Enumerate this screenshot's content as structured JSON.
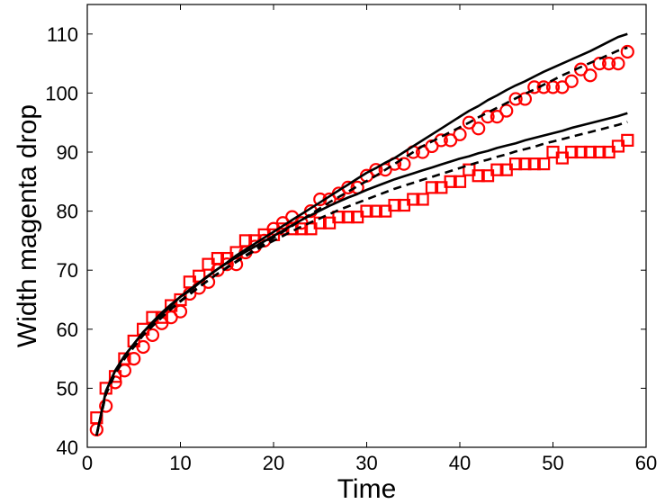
{
  "chart_data": {
    "type": "line",
    "xlabel": "Time",
    "ylabel": "Width magenta drop",
    "xlim": [
      0,
      60
    ],
    "ylim": [
      40,
      115
    ],
    "xticks": [
      0,
      10,
      20,
      30,
      40,
      50,
      60
    ],
    "yticks": [
      40,
      50,
      60,
      70,
      80,
      90,
      100,
      110
    ],
    "grid": false,
    "legend": "none",
    "series": [
      {
        "style": "circle-markers",
        "color": "#ff0000",
        "x": [
          1,
          2,
          3,
          4,
          5,
          6,
          7,
          8,
          9,
          10,
          11,
          12,
          13,
          14,
          15,
          16,
          17,
          18,
          19,
          20,
          21,
          22,
          23,
          24,
          25,
          26,
          27,
          28,
          29,
          30,
          31,
          32,
          33,
          34,
          35,
          36,
          37,
          38,
          39,
          40,
          41,
          42,
          43,
          44,
          45,
          46,
          47,
          48,
          49,
          50,
          51,
          52,
          53,
          54,
          55,
          56,
          57,
          58
        ],
        "values": [
          43,
          47,
          51,
          53,
          55,
          57,
          59,
          61,
          62,
          63,
          66,
          67,
          68,
          70,
          71,
          71,
          73,
          74,
          75,
          77,
          78,
          79,
          78,
          80,
          82,
          82,
          83,
          84,
          84,
          86,
          87,
          87,
          88,
          88,
          90,
          90,
          91,
          92,
          92,
          93,
          95,
          94,
          96,
          96,
          97,
          99,
          99,
          101,
          101,
          101,
          101,
          102,
          104,
          103,
          105,
          105,
          105,
          107
        ]
      },
      {
        "style": "square-markers",
        "color": "#ff0000",
        "x": [
          1,
          2,
          3,
          4,
          5,
          6,
          7,
          8,
          9,
          10,
          11,
          12,
          13,
          14,
          15,
          16,
          17,
          18,
          19,
          20,
          21,
          22,
          23,
          24,
          25,
          26,
          27,
          28,
          29,
          30,
          31,
          32,
          33,
          34,
          35,
          36,
          37,
          38,
          39,
          40,
          41,
          42,
          43,
          44,
          45,
          46,
          47,
          48,
          49,
          50,
          51,
          52,
          53,
          54,
          55,
          56,
          57,
          58
        ],
        "values": [
          45,
          50,
          52,
          55,
          58,
          60,
          62,
          62,
          64,
          65,
          68,
          69,
          71,
          72,
          72,
          73,
          75,
          75,
          76,
          76,
          77,
          77,
          77,
          77,
          78,
          78,
          79,
          79,
          79,
          80,
          80,
          80,
          81,
          81,
          82,
          82,
          84,
          84,
          85,
          85,
          87,
          86,
          86,
          87,
          87,
          88,
          88,
          88,
          88,
          90,
          89,
          90,
          90,
          90,
          90,
          90,
          91,
          92
        ]
      },
      {
        "style": "solid-line",
        "color": "#000000",
        "x": [
          1,
          2,
          3,
          4,
          5,
          6,
          7,
          8,
          9,
          10,
          11,
          12,
          13,
          14,
          15,
          16,
          17,
          18,
          19,
          20,
          21,
          22,
          23,
          24,
          25,
          26,
          27,
          28,
          29,
          30,
          31,
          32,
          33,
          34,
          35,
          36,
          37,
          38,
          39,
          40,
          41,
          42,
          43,
          44,
          45,
          46,
          47,
          48,
          49,
          50,
          51,
          52,
          53,
          54,
          55,
          56,
          57,
          58
        ],
        "values": [
          42,
          49.5,
          53,
          55.5,
          57.5,
          59.5,
          61,
          62.5,
          64,
          65.5,
          66.5,
          67.8,
          69,
          70.2,
          71.3,
          72.5,
          73.5,
          74.5,
          75.5,
          76.5,
          77.5,
          78.5,
          79.5,
          80.5,
          81.5,
          82.5,
          83.5,
          84.5,
          85.5,
          86.5,
          87.3,
          88.2,
          89,
          90,
          91,
          92,
          93,
          94,
          95,
          96,
          97,
          97.8,
          98.8,
          99.6,
          100.5,
          101.3,
          102,
          102.8,
          103.6,
          104.3,
          105,
          105.7,
          106.4,
          107.1,
          107.9,
          108.7,
          109.5,
          110
        ]
      },
      {
        "style": "dashed-line",
        "color": "#000000",
        "x": [
          1,
          2,
          3,
          4,
          5,
          6,
          7,
          8,
          9,
          10,
          11,
          12,
          13,
          14,
          15,
          16,
          17,
          18,
          19,
          20,
          21,
          22,
          23,
          24,
          25,
          26,
          27,
          28,
          29,
          30,
          31,
          32,
          33,
          34,
          35,
          36,
          37,
          38,
          39,
          40,
          41,
          42,
          43,
          44,
          45,
          46,
          47,
          48,
          49,
          50,
          51,
          52,
          53,
          54,
          55,
          56,
          57,
          58
        ],
        "values": [
          42,
          49,
          52.5,
          55,
          57,
          59,
          60.5,
          62,
          63.5,
          64.8,
          66,
          67.2,
          68.3,
          69.4,
          70.5,
          71.5,
          72.5,
          73.5,
          74.5,
          75.5,
          76.5,
          77.5,
          78.5,
          79.5,
          80.5,
          81.5,
          82.4,
          83.3,
          84.2,
          85.1,
          86,
          87,
          88,
          89,
          90,
          91,
          91.8,
          92.6,
          93.4,
          94.2,
          95,
          95.9,
          96.7,
          97.5,
          98.3,
          99.1,
          99.9,
          100.6,
          101.4,
          102.2,
          103,
          103.7,
          104.4,
          105.1,
          105.8,
          106.5,
          107.2,
          107.7
        ]
      },
      {
        "style": "solid-line",
        "color": "#000000",
        "x": [
          1,
          2,
          3,
          4,
          5,
          6,
          7,
          8,
          9,
          10,
          11,
          12,
          13,
          14,
          15,
          16,
          17,
          18,
          19,
          20,
          21,
          22,
          23,
          24,
          25,
          26,
          27,
          28,
          29,
          30,
          31,
          32,
          33,
          34,
          35,
          36,
          37,
          38,
          39,
          40,
          41,
          42,
          43,
          44,
          45,
          46,
          47,
          48,
          49,
          50,
          51,
          52,
          53,
          54,
          55,
          56,
          57,
          58
        ],
        "values": [
          42,
          49.5,
          53,
          55.5,
          57.5,
          59.5,
          61.2,
          62.8,
          64.2,
          65.5,
          66.7,
          67.9,
          69.1,
          70.2,
          71.2,
          72.2,
          73.1,
          74,
          74.9,
          75.8,
          76.7,
          77.6,
          78.5,
          79.3,
          80.1,
          80.9,
          81.6,
          82.3,
          82.9,
          83.6,
          84.2,
          84.8,
          85.4,
          85.9,
          86.4,
          86.9,
          87.4,
          87.9,
          88.4,
          88.9,
          89.3,
          89.8,
          90.2,
          90.7,
          91.1,
          91.5,
          92,
          92.4,
          92.8,
          93.2,
          93.6,
          94.1,
          94.5,
          94.9,
          95.3,
          95.7,
          96.1,
          96.6
        ]
      },
      {
        "style": "dashed-line",
        "color": "#000000",
        "x": [
          1,
          2,
          3,
          4,
          5,
          6,
          7,
          8,
          9,
          10,
          11,
          12,
          13,
          14,
          15,
          16,
          17,
          18,
          19,
          20,
          21,
          22,
          23,
          24,
          25,
          26,
          27,
          28,
          29,
          30,
          31,
          32,
          33,
          34,
          35,
          36,
          37,
          38,
          39,
          40,
          41,
          42,
          43,
          44,
          45,
          46,
          47,
          48,
          49,
          50,
          51,
          52,
          53,
          54,
          55,
          56,
          57,
          58
        ],
        "values": [
          42,
          49,
          52.5,
          55,
          57,
          59,
          60.6,
          62.1,
          63.4,
          64.7,
          65.9,
          67.1,
          68.3,
          69.4,
          70.4,
          71.4,
          72.4,
          73.3,
          74.2,
          75,
          75.8,
          76.6,
          77.4,
          78.1,
          78.8,
          79.5,
          80.2,
          80.8,
          81.4,
          82,
          82.6,
          83.2,
          83.8,
          84.3,
          84.8,
          85.3,
          85.8,
          86.3,
          86.8,
          87.3,
          87.8,
          88.3,
          88.7,
          89.2,
          89.6,
          90.1,
          90.5,
          90.9,
          91.4,
          91.8,
          92.2,
          92.6,
          93,
          93.4,
          93.8,
          94.2,
          94.6,
          95.1
        ]
      }
    ]
  }
}
